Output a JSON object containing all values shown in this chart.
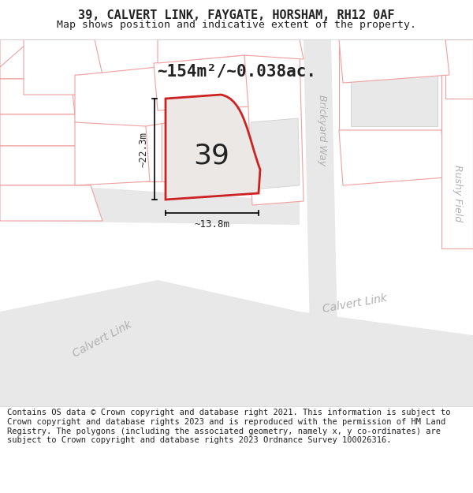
{
  "title": "39, CALVERT LINK, FAYGATE, HORSHAM, RH12 0AF",
  "subtitle": "Map shows position and indicative extent of the property.",
  "area_text": "~154m²/~0.038ac.",
  "label_number": "39",
  "dim_width": "~13.8m",
  "dim_height": "~22.3m",
  "footer": "Contains OS data © Crown copyright and database right 2021. This information is subject to Crown copyright and database rights 2023 and is reproduced with the permission of HM Land Registry. The polygons (including the associated geometry, namely x, y co-ordinates) are subject to Crown copyright and database rights 2023 Ordnance Survey 100026316.",
  "bg_color": "#ffffff",
  "map_bg": "#ffffff",
  "road_fill": "#e8e8e8",
  "property_fill": "#e8e4e0",
  "property_edge": "#cc2222",
  "other_edge": "#f0a0a0",
  "other_edge2": "#d0d0d0",
  "text_color": "#222222",
  "road_text_color": "#aaaaaa",
  "title_fontsize": 11,
  "subtitle_fontsize": 9.5,
  "footer_fontsize": 7.5,
  "header_bg": "#ffffff"
}
